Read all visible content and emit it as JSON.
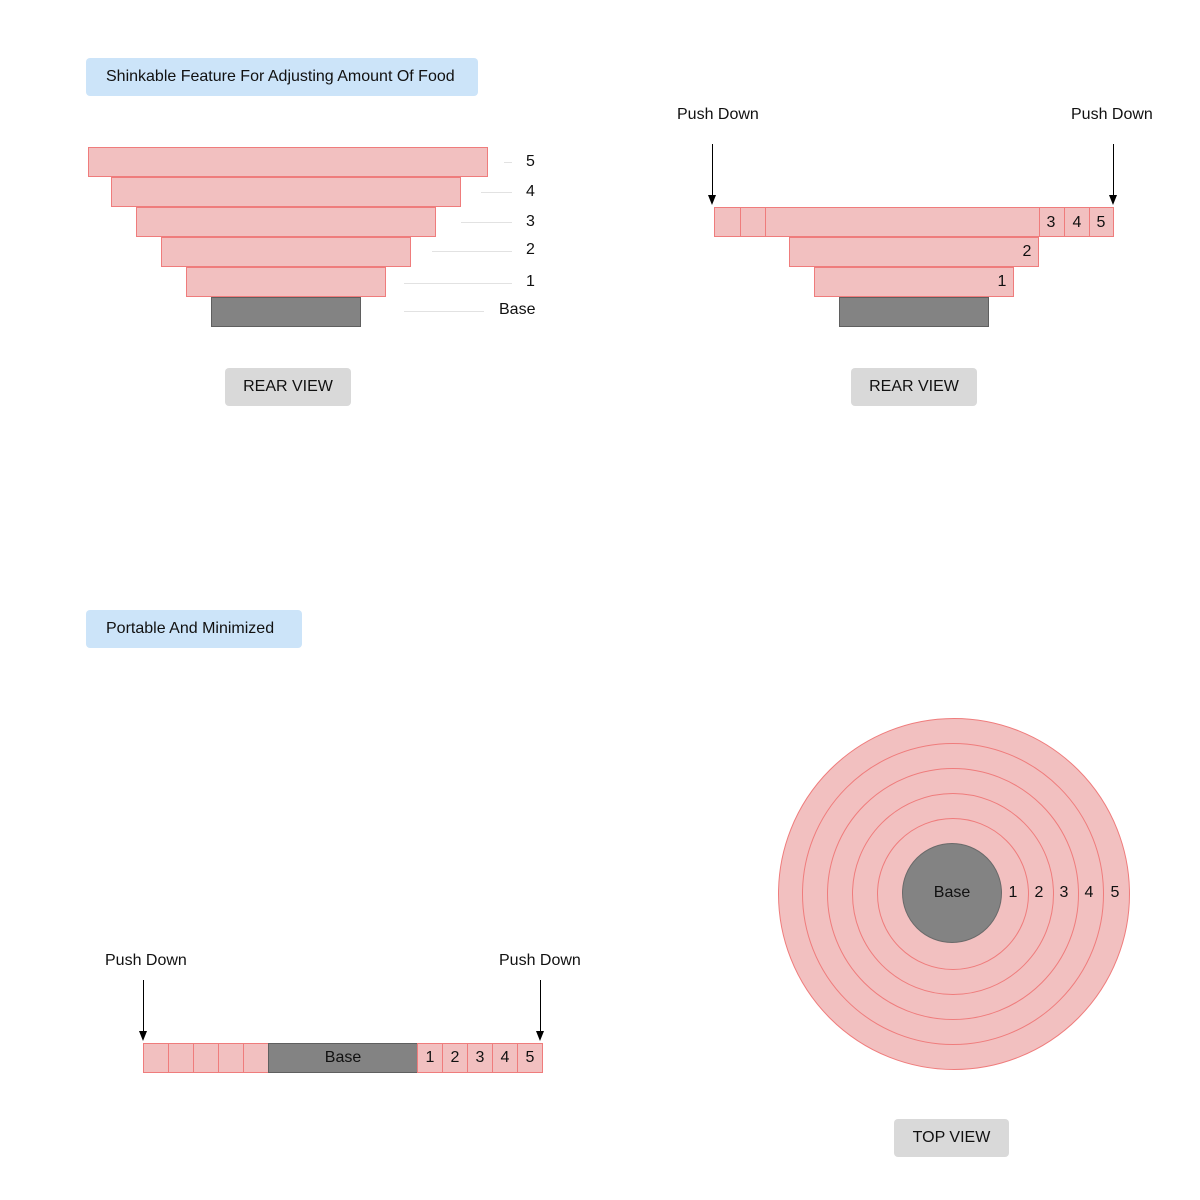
{
  "section_adjust": {
    "title": "Shinkable Feature For Adjusting Amount Of Food"
  },
  "rear_view_expanded": {
    "tier_labels": [
      "5",
      "4",
      "3",
      "2",
      "1"
    ],
    "base_label": "Base",
    "button_label": "REAR VIEW"
  },
  "rear_view_pushed": {
    "push_left_label": "Push Down",
    "push_right_label": "Push Down",
    "top_tier_numbers": [
      "3",
      "4",
      "5"
    ],
    "tier2_number": "2",
    "tier1_number": "1",
    "button_label": "REAR VIEW"
  },
  "section_portable": {
    "title": "Portable And Minimized"
  },
  "flat_view": {
    "push_left_label": "Push Down",
    "push_right_label": "Push Down",
    "base_label": "Base",
    "right_cells": [
      "1",
      "2",
      "3",
      "4",
      "5"
    ]
  },
  "top_view": {
    "base_label": "Base",
    "ring_labels": [
      "1",
      "2",
      "3",
      "4",
      "5"
    ],
    "button_label": "TOP VIEW"
  },
  "colors": {
    "tier_fill": "#f2c0c0",
    "tier_stroke": "#ef7c7c",
    "base_fill": "#838383",
    "title_bg": "#cce4f9",
    "button_bg": "#d9d9d9"
  }
}
